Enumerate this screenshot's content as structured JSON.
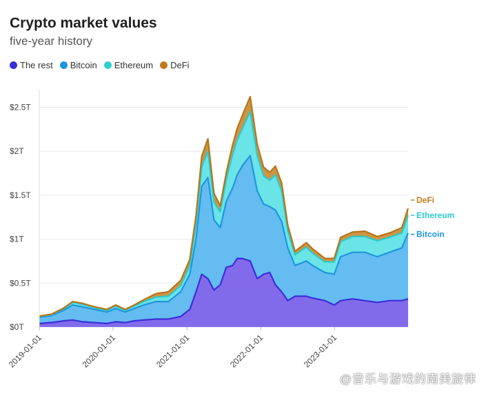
{
  "header": {
    "title": "Crypto market values",
    "subtitle": "five-year history"
  },
  "watermark": "@音乐与游戏的南美旋律",
  "chart_data": {
    "type": "area",
    "stacked": true,
    "title": "Crypto market values",
    "subtitle": "five-year history",
    "xlabel": "",
    "ylabel": "",
    "x_ticks": [
      "2019-01-01",
      "2020-01-01",
      "2021-01-01",
      "2022-01-01",
      "2023-01-01"
    ],
    "y_ticks": [
      "$0T",
      "$0.5T",
      "$1T",
      "$1.5T",
      "$2T",
      "$2.5T"
    ],
    "y_tick_values": [
      0,
      0.5,
      1,
      1.5,
      2,
      2.5
    ],
    "ylim": [
      0,
      2.7
    ],
    "grid": true,
    "legend_position": "top-left",
    "end_labels": [
      "DeFi",
      "Ethereum",
      "Bitcoin"
    ],
    "x": [
      "2019-01-01",
      "2019-03-01",
      "2019-05-01",
      "2019-06-15",
      "2019-08-01",
      "2019-10-01",
      "2019-12-01",
      "2020-01-15",
      "2020-03-01",
      "2020-04-15",
      "2020-06-01",
      "2020-08-01",
      "2020-10-01",
      "2020-12-01",
      "2021-01-15",
      "2021-02-15",
      "2021-03-15",
      "2021-04-15",
      "2021-05-15",
      "2021-06-15",
      "2021-07-15",
      "2021-08-15",
      "2021-09-07",
      "2021-10-01",
      "2021-11-10",
      "2021-12-15",
      "2022-01-15",
      "2022-02-15",
      "2022-03-15",
      "2022-04-15",
      "2022-05-15",
      "2022-06-20",
      "2022-08-15",
      "2022-09-15",
      "2022-11-15",
      "2022-12-31",
      "2023-02-01",
      "2023-04-01",
      "2023-06-01",
      "2023-08-01",
      "2023-10-01",
      "2023-12-01",
      "2024-01-01"
    ],
    "series": [
      {
        "name": "The rest",
        "color": "#5b3fd9",
        "values": [
          0.04,
          0.05,
          0.07,
          0.08,
          0.06,
          0.05,
          0.04,
          0.06,
          0.05,
          0.07,
          0.08,
          0.09,
          0.09,
          0.12,
          0.2,
          0.4,
          0.6,
          0.55,
          0.42,
          0.48,
          0.68,
          0.7,
          0.78,
          0.78,
          0.75,
          0.55,
          0.6,
          0.62,
          0.48,
          0.4,
          0.3,
          0.35,
          0.35,
          0.33,
          0.3,
          0.25,
          0.3,
          0.32,
          0.3,
          0.28,
          0.3,
          0.3,
          0.32
        ]
      },
      {
        "name": "Bitcoin",
        "color": "#2f9fe2",
        "values": [
          0.07,
          0.08,
          0.12,
          0.17,
          0.17,
          0.15,
          0.13,
          0.15,
          0.12,
          0.14,
          0.17,
          0.2,
          0.2,
          0.28,
          0.4,
          0.6,
          1.0,
          1.15,
          0.8,
          0.65,
          0.75,
          0.88,
          0.95,
          1.05,
          1.2,
          1.0,
          0.8,
          0.75,
          0.85,
          0.8,
          0.6,
          0.35,
          0.4,
          0.37,
          0.32,
          0.35,
          0.5,
          0.53,
          0.55,
          0.52,
          0.55,
          0.6,
          0.75
        ]
      },
      {
        "name": "Ethereum",
        "color": "#3ad6d6",
        "values": [
          0.01,
          0.01,
          0.02,
          0.03,
          0.03,
          0.02,
          0.02,
          0.03,
          0.02,
          0.03,
          0.04,
          0.05,
          0.06,
          0.07,
          0.1,
          0.18,
          0.22,
          0.3,
          0.2,
          0.18,
          0.25,
          0.38,
          0.4,
          0.42,
          0.5,
          0.4,
          0.32,
          0.3,
          0.4,
          0.35,
          0.2,
          0.12,
          0.16,
          0.14,
          0.12,
          0.14,
          0.17,
          0.18,
          0.18,
          0.18,
          0.17,
          0.17,
          0.2
        ]
      },
      {
        "name": "DeFi",
        "color": "#c07a1d",
        "values": [
          0.005,
          0.005,
          0.005,
          0.01,
          0.01,
          0.01,
          0.01,
          0.01,
          0.01,
          0.01,
          0.02,
          0.04,
          0.05,
          0.06,
          0.07,
          0.09,
          0.12,
          0.14,
          0.1,
          0.07,
          0.08,
          0.11,
          0.13,
          0.15,
          0.17,
          0.13,
          0.1,
          0.09,
          0.1,
          0.09,
          0.06,
          0.04,
          0.05,
          0.05,
          0.04,
          0.04,
          0.05,
          0.05,
          0.06,
          0.05,
          0.05,
          0.06,
          0.08
        ]
      }
    ]
  }
}
